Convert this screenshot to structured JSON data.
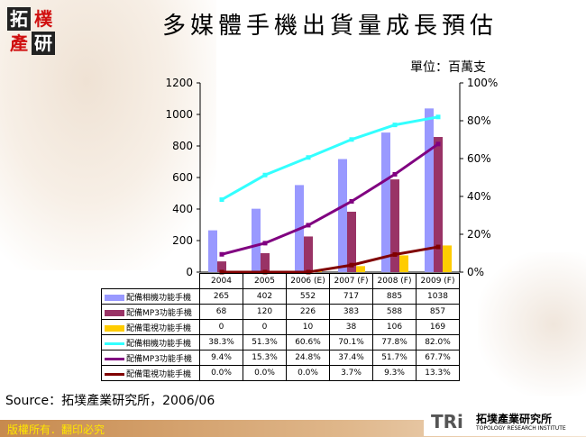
{
  "logo": {
    "chars": [
      "拓",
      "樸",
      "產",
      "研"
    ]
  },
  "title": "多媒體手機出貨量成長預估",
  "unit": "單位：百萬支",
  "chart_data": {
    "type": "bar+line",
    "categories": [
      "2004",
      "2005",
      "2006 (E)",
      "2007 (F)",
      "2008 (F)",
      "2009 (F)"
    ],
    "left_axis": {
      "range": [
        0,
        1200
      ],
      "ticks": [
        "0",
        "200",
        "400",
        "600",
        "800",
        "1000",
        "1200"
      ]
    },
    "right_axis": {
      "range": [
        0,
        100
      ],
      "ticks": [
        "0%",
        "20%",
        "40%",
        "60%",
        "80%",
        "100%"
      ]
    },
    "bar_series": [
      {
        "name": "配備相機功能手機",
        "color": "#9999ff",
        "values": [
          265,
          402,
          552,
          717,
          885,
          1038
        ]
      },
      {
        "name": "配備MP3功能手機",
        "color": "#993366",
        "values": [
          68,
          120,
          226,
          383,
          588,
          857
        ]
      },
      {
        "name": "配備電視功能手機",
        "color": "#ffcc00",
        "values": [
          0,
          0,
          10,
          38,
          106,
          169
        ]
      }
    ],
    "line_series": [
      {
        "name": "配備相機功能手機",
        "color": "#33ffff",
        "values": [
          38.3,
          51.3,
          60.6,
          70.1,
          77.8,
          82.0
        ],
        "labels": [
          "38.3%",
          "51.3%",
          "60.6%",
          "70.1%",
          "77.8%",
          "82.0%"
        ]
      },
      {
        "name": "配備MP3功能手機",
        "color": "#800080",
        "values": [
          9.4,
          15.3,
          24.8,
          37.4,
          51.7,
          67.7
        ],
        "labels": [
          "9.4%",
          "15.3%",
          "24.8%",
          "37.4%",
          "51.7%",
          "67.7%"
        ]
      },
      {
        "name": "配備電視功能手機",
        "color": "#800000",
        "values": [
          0.0,
          0.0,
          0.0,
          3.7,
          9.3,
          13.3
        ],
        "labels": [
          "0.0%",
          "0.0%",
          "0.0%",
          "3.7%",
          "9.3%",
          "13.3%"
        ]
      }
    ],
    "grid": false,
    "legend": "data-table"
  },
  "source": "Source：拓墣產業研究所，2006/06",
  "footer": {
    "copyright": "版權所有．翻印必究",
    "brand_mark": "TRi",
    "brand_name": "拓墣產業研究所",
    "brand_en": "TOPOLOGY RESEARCH INSTITUTE"
  }
}
